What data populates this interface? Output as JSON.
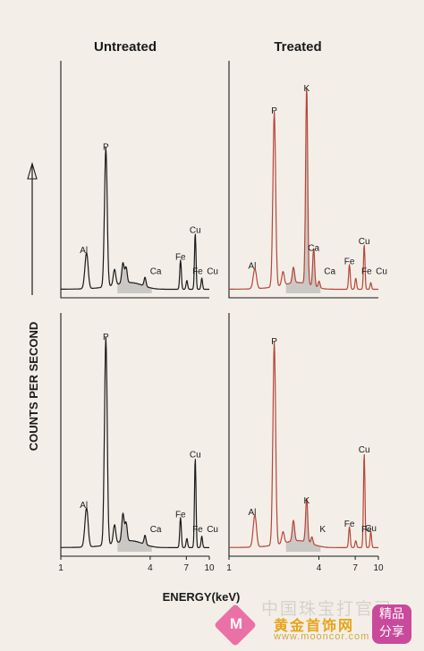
{
  "chart_data": {
    "type": "line",
    "y_axis_label": "COUNTS PER SECOND",
    "x_axis_label": "ENERGY(keV)",
    "x_scale": "log",
    "x_ticks": [
      1,
      4,
      7,
      10
    ],
    "xlim": [
      1,
      10
    ],
    "columns": [
      "Untreated",
      "Treated"
    ],
    "panels": [
      {
        "column": "Untreated",
        "row": "top",
        "line_color": "#1a1a1a",
        "peaks": [
          {
            "label": "Al",
            "energy": 1.49,
            "height": 0.16
          },
          {
            "label": "P",
            "energy": 2.01,
            "height": 0.62
          },
          {
            "label": "",
            "energy": 2.3,
            "height": 0.07
          },
          {
            "label": "",
            "energy": 2.62,
            "height": 0.09
          },
          {
            "label": "",
            "energy": 2.75,
            "height": 0.07
          },
          {
            "label": "Ca",
            "energy": 3.69,
            "height": 0.04
          },
          {
            "label": "Fe",
            "energy": 6.4,
            "height": 0.13
          },
          {
            "label": "Fe",
            "energy": 7.06,
            "height": 0.04
          },
          {
            "label": "Cu",
            "energy": 8.04,
            "height": 0.25
          },
          {
            "label": "Cu",
            "energy": 8.9,
            "height": 0.05
          }
        ]
      },
      {
        "column": "Treated",
        "row": "top",
        "line_color": "#b8453a",
        "peaks": [
          {
            "label": "Al",
            "energy": 1.49,
            "height": 0.09
          },
          {
            "label": "P",
            "energy": 2.01,
            "height": 0.78
          },
          {
            "label": "",
            "energy": 2.3,
            "height": 0.06
          },
          {
            "label": "",
            "energy": 2.7,
            "height": 0.07
          },
          {
            "label": "K",
            "energy": 3.31,
            "height": 0.88
          },
          {
            "label": "Ca",
            "energy": 3.69,
            "height": 0.17
          },
          {
            "label": "Ca",
            "energy": 4.01,
            "height": 0.03
          },
          {
            "label": "Fe",
            "energy": 6.4,
            "height": 0.11
          },
          {
            "label": "Fe",
            "energy": 7.06,
            "height": 0.05
          },
          {
            "label": "Cu",
            "energy": 8.04,
            "height": 0.2
          },
          {
            "label": "Cu",
            "energy": 8.9,
            "height": 0.03
          }
        ]
      },
      {
        "column": "Untreated",
        "row": "bottom",
        "line_color": "#1a1a1a",
        "peaks": [
          {
            "label": "Al",
            "energy": 1.49,
            "height": 0.17
          },
          {
            "label": "P",
            "energy": 2.01,
            "height": 0.9
          },
          {
            "label": "",
            "energy": 2.3,
            "height": 0.08
          },
          {
            "label": "",
            "energy": 2.62,
            "height": 0.12
          },
          {
            "label": "",
            "energy": 2.75,
            "height": 0.08
          },
          {
            "label": "Ca",
            "energy": 3.69,
            "height": 0.04
          },
          {
            "label": "Fe",
            "energy": 6.4,
            "height": 0.13
          },
          {
            "label": "Fe",
            "energy": 7.06,
            "height": 0.04
          },
          {
            "label": "Cu",
            "energy": 8.04,
            "height": 0.39
          },
          {
            "label": "Cu",
            "energy": 8.9,
            "height": 0.05
          }
        ]
      },
      {
        "column": "Treated",
        "row": "bottom",
        "line_color": "#b8453a",
        "peaks": [
          {
            "label": "Al",
            "energy": 1.49,
            "height": 0.14
          },
          {
            "label": "P",
            "energy": 2.01,
            "height": 0.88
          },
          {
            "label": "",
            "energy": 2.3,
            "height": 0.05
          },
          {
            "label": "",
            "energy": 2.7,
            "height": 0.09
          },
          {
            "label": "K",
            "energy": 3.31,
            "height": 0.19
          },
          {
            "label": "K",
            "energy": 3.59,
            "height": 0.03
          },
          {
            "label": "Fe",
            "energy": 6.4,
            "height": 0.09
          },
          {
            "label": "Fe",
            "energy": 7.06,
            "height": 0.03
          },
          {
            "label": "Cu",
            "energy": 8.04,
            "height": 0.41
          },
          {
            "label": "Cu",
            "energy": 8.9,
            "height": 0.07
          }
        ]
      }
    ]
  },
  "colors": {
    "background": "#f3efe8",
    "untreated_line": "#1a1a1a",
    "treated_line": "#b8453a",
    "shading": "#9a9a9a"
  },
  "watermark": {
    "line1": "中国珠宝打官司",
    "line2": "黄金首饰网",
    "line3": "www.mooncor.com",
    "logo_letter": "M",
    "badge_line1": "精品",
    "badge_line2": "分享"
  }
}
